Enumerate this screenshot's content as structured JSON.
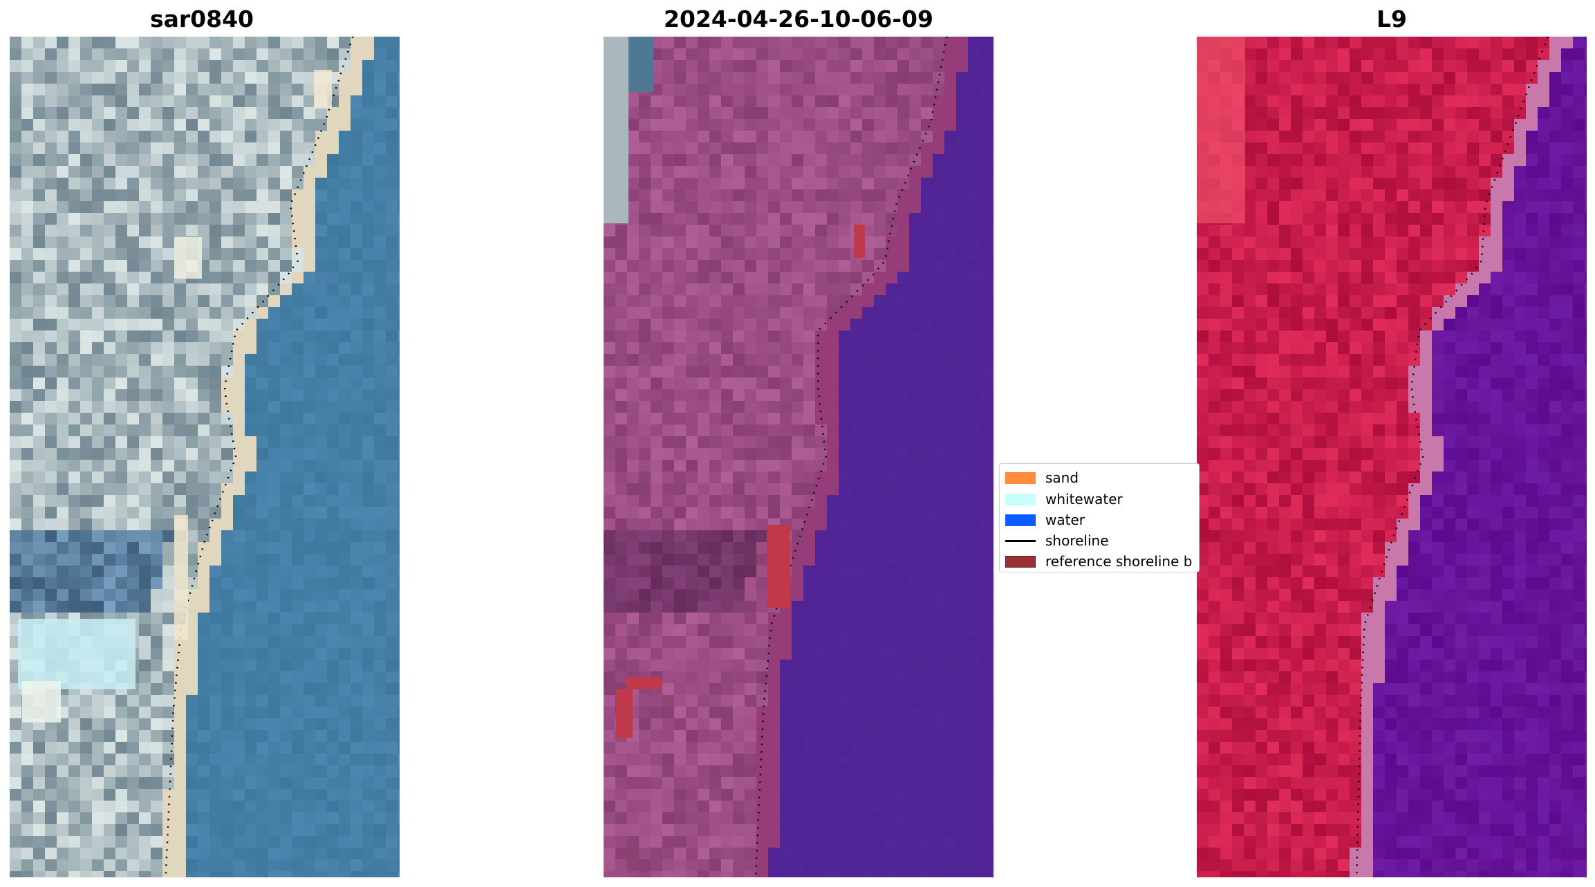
{
  "panels": [
    {
      "title": "sar0840",
      "style": "natural"
    },
    {
      "title": "2024-04-26-10-06-09",
      "style": "classified"
    },
    {
      "title": "L9",
      "style": "falsecolor"
    }
  ],
  "legend": {
    "items": [
      {
        "label": "sand",
        "color": "#ff8c3c",
        "kind": "patch"
      },
      {
        "label": "whitewater",
        "color": "#c8ffff",
        "kind": "patch"
      },
      {
        "label": "water",
        "color": "#0a5cff",
        "kind": "patch"
      },
      {
        "label": "shoreline",
        "color": "#000000",
        "kind": "line"
      },
      {
        "label": "reference shoreline b",
        "color": "#9b3037",
        "kind": "patch"
      }
    ]
  },
  "colors": {
    "land_natural": "#a6b6bb",
    "sea_natural": "#467fa6",
    "land_classified": "#9c4e84",
    "sea_classified": "#522596",
    "land_falsecolor": "#c81d4c",
    "sea_falsecolor": "#65149a",
    "reference_shoreline": "#c0394a"
  }
}
